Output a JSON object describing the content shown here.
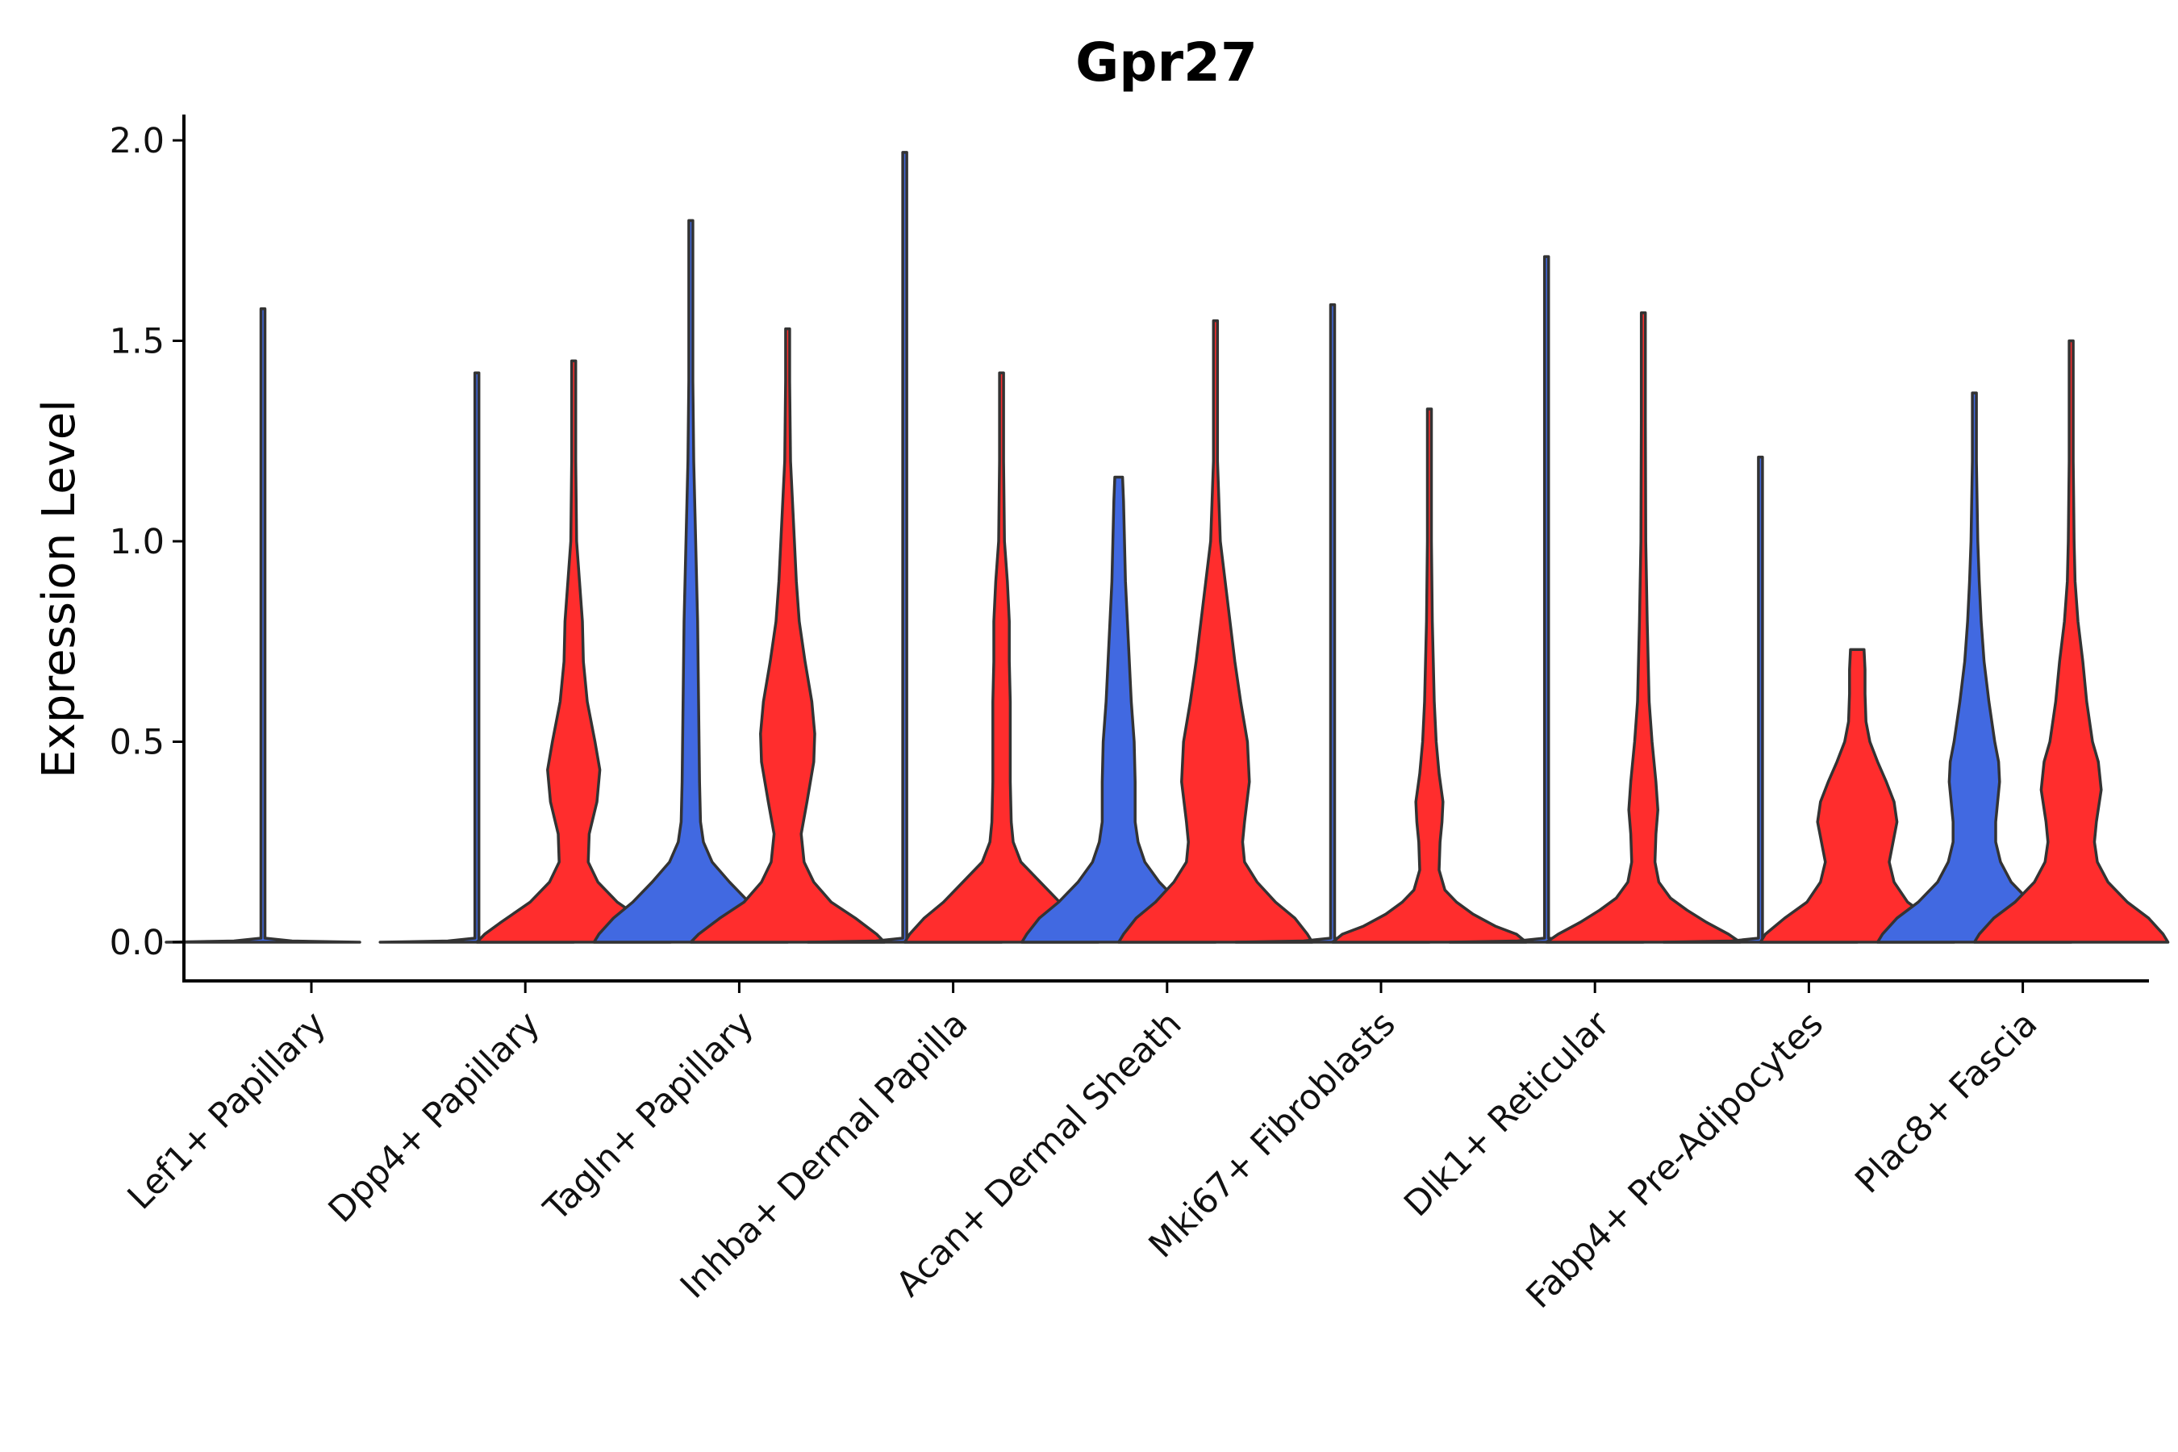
{
  "chart_data": {
    "type": "violin",
    "title": "Gpr27",
    "xlabel": "",
    "ylabel": "Expression Level",
    "ylim": [
      -0.1,
      2.07
    ],
    "yticks": [
      0.0,
      0.5,
      1.0,
      1.5,
      2.0
    ],
    "ytick_labels": [
      "0.0",
      "0.5",
      "1.0",
      "1.5",
      "2.0"
    ],
    "grid": false,
    "legend": "none",
    "colors": {
      "blue": "#4169e1",
      "red": "#ff2d2d",
      "outline": "#333333"
    },
    "categories": [
      "Lef1+ Papillary",
      "Dpp4+ Papillary",
      "Tagln+ Papillary",
      "Inhba+ Dermal Papilla",
      "Acan+ Dermal Sheath",
      "Mki67+ Fibroblasts",
      "Dlk1+ Reticular",
      "Fabp4+ Pre-Adipocytes",
      "Plac8+ Fascia"
    ],
    "violins": [
      {
        "group": "Lef1+ Papillary",
        "side": "left",
        "color": "blue",
        "max": 1.58,
        "profile": [
          [
            0,
            1.0
          ],
          [
            0.003,
            0.3
          ],
          [
            0.01,
            0.01
          ],
          [
            0.06,
            0.006
          ],
          [
            1.58,
            0.006
          ]
        ]
      },
      {
        "group": "Lef1+ Papillary",
        "side": "right",
        "color": "red",
        "max": 0.0,
        "profile": []
      },
      {
        "group": "Dpp4+ Papillary",
        "side": "left",
        "color": "blue",
        "max": 1.42,
        "profile": [
          [
            0,
            1.0
          ],
          [
            0.003,
            0.3
          ],
          [
            0.01,
            0.01
          ],
          [
            0.06,
            0.006
          ],
          [
            1.42,
            0.006
          ]
        ]
      },
      {
        "group": "Dpp4+ Papillary",
        "side": "right",
        "color": "red",
        "max": 1.45,
        "profile": [
          [
            0,
            1.0
          ],
          [
            0.02,
            0.92
          ],
          [
            0.05,
            0.75
          ],
          [
            0.1,
            0.45
          ],
          [
            0.15,
            0.25
          ],
          [
            0.2,
            0.15
          ],
          [
            0.27,
            0.16
          ],
          [
            0.35,
            0.24
          ],
          [
            0.43,
            0.27
          ],
          [
            0.5,
            0.22
          ],
          [
            0.6,
            0.14
          ],
          [
            0.7,
            0.1
          ],
          [
            0.8,
            0.09
          ],
          [
            0.9,
            0.06
          ],
          [
            1.0,
            0.03
          ],
          [
            1.2,
            0.015
          ],
          [
            1.45,
            0.01
          ]
        ]
      },
      {
        "group": "Tagln+ Papillary",
        "side": "left",
        "color": "blue",
        "max": 1.8,
        "profile": [
          [
            0,
            1.0
          ],
          [
            0.02,
            0.95
          ],
          [
            0.06,
            0.8
          ],
          [
            0.1,
            0.6
          ],
          [
            0.15,
            0.4
          ],
          [
            0.2,
            0.22
          ],
          [
            0.25,
            0.13
          ],
          [
            0.3,
            0.1
          ],
          [
            0.4,
            0.09
          ],
          [
            0.6,
            0.08
          ],
          [
            0.8,
            0.07
          ],
          [
            1.0,
            0.05
          ],
          [
            1.2,
            0.03
          ],
          [
            1.4,
            0.015
          ],
          [
            1.8,
            0.01
          ]
        ]
      },
      {
        "group": "Tagln+ Papillary",
        "side": "right",
        "color": "red",
        "max": 1.53,
        "profile": [
          [
            0,
            1.0
          ],
          [
            0.02,
            0.92
          ],
          [
            0.06,
            0.7
          ],
          [
            0.1,
            0.45
          ],
          [
            0.15,
            0.27
          ],
          [
            0.2,
            0.17
          ],
          [
            0.27,
            0.14
          ],
          [
            0.35,
            0.2
          ],
          [
            0.45,
            0.27
          ],
          [
            0.52,
            0.28
          ],
          [
            0.6,
            0.25
          ],
          [
            0.7,
            0.18
          ],
          [
            0.8,
            0.12
          ],
          [
            0.9,
            0.09
          ],
          [
            1.0,
            0.07
          ],
          [
            1.2,
            0.03
          ],
          [
            1.4,
            0.015
          ],
          [
            1.53,
            0.01
          ]
        ]
      },
      {
        "group": "Inhba+ Dermal Papilla",
        "side": "left",
        "color": "blue",
        "max": 1.97,
        "profile": [
          [
            0,
            1.0
          ],
          [
            0.003,
            0.3
          ],
          [
            0.01,
            0.01
          ],
          [
            0.06,
            0.006
          ],
          [
            1.97,
            0.006
          ]
        ]
      },
      {
        "group": "Inhba+ Dermal Papilla",
        "side": "right",
        "color": "red",
        "max": 1.42,
        "profile": [
          [
            0,
            1.0
          ],
          [
            0.02,
            0.95
          ],
          [
            0.06,
            0.8
          ],
          [
            0.1,
            0.6
          ],
          [
            0.15,
            0.4
          ],
          [
            0.2,
            0.2
          ],
          [
            0.25,
            0.12
          ],
          [
            0.3,
            0.1
          ],
          [
            0.4,
            0.09
          ],
          [
            0.5,
            0.09
          ],
          [
            0.6,
            0.09
          ],
          [
            0.7,
            0.08
          ],
          [
            0.8,
            0.08
          ],
          [
            0.9,
            0.06
          ],
          [
            1.0,
            0.03
          ],
          [
            1.2,
            0.015
          ],
          [
            1.42,
            0.01
          ]
        ]
      },
      {
        "group": "Acan+ Dermal Sheath",
        "side": "left",
        "color": "blue",
        "max": 1.16,
        "profile": [
          [
            0,
            1.0
          ],
          [
            0.02,
            0.95
          ],
          [
            0.06,
            0.82
          ],
          [
            0.1,
            0.62
          ],
          [
            0.15,
            0.42
          ],
          [
            0.2,
            0.27
          ],
          [
            0.25,
            0.2
          ],
          [
            0.3,
            0.17
          ],
          [
            0.4,
            0.17
          ],
          [
            0.5,
            0.16
          ],
          [
            0.6,
            0.13
          ],
          [
            0.7,
            0.11
          ],
          [
            0.8,
            0.09
          ],
          [
            0.9,
            0.07
          ],
          [
            1.0,
            0.06
          ],
          [
            1.1,
            0.05
          ],
          [
            1.16,
            0.04
          ]
        ]
      },
      {
        "group": "Acan+ Dermal Sheath",
        "side": "right",
        "color": "red",
        "max": 1.55,
        "profile": [
          [
            0,
            1.0
          ],
          [
            0.02,
            0.95
          ],
          [
            0.06,
            0.82
          ],
          [
            0.1,
            0.62
          ],
          [
            0.15,
            0.43
          ],
          [
            0.2,
            0.3
          ],
          [
            0.25,
            0.28
          ],
          [
            0.3,
            0.3
          ],
          [
            0.4,
            0.35
          ],
          [
            0.5,
            0.33
          ],
          [
            0.6,
            0.26
          ],
          [
            0.7,
            0.2
          ],
          [
            0.8,
            0.15
          ],
          [
            0.9,
            0.1
          ],
          [
            1.0,
            0.05
          ],
          [
            1.2,
            0.02
          ],
          [
            1.4,
            0.012
          ],
          [
            1.55,
            0.01
          ]
        ]
      },
      {
        "group": "Mki67+ Fibroblasts",
        "side": "left",
        "color": "blue",
        "max": 1.59,
        "profile": [
          [
            0,
            1.0
          ],
          [
            0.003,
            0.3
          ],
          [
            0.01,
            0.01
          ],
          [
            0.06,
            0.006
          ],
          [
            1.59,
            0.006
          ]
        ]
      },
      {
        "group": "Mki67+ Fibroblasts",
        "side": "right",
        "color": "red",
        "max": 1.33,
        "profile": [
          [
            0,
            1.0
          ],
          [
            0.02,
            0.9
          ],
          [
            0.04,
            0.68
          ],
          [
            0.07,
            0.45
          ],
          [
            0.1,
            0.28
          ],
          [
            0.13,
            0.16
          ],
          [
            0.18,
            0.1
          ],
          [
            0.25,
            0.11
          ],
          [
            0.3,
            0.13
          ],
          [
            0.35,
            0.14
          ],
          [
            0.42,
            0.1
          ],
          [
            0.5,
            0.07
          ],
          [
            0.6,
            0.05
          ],
          [
            0.8,
            0.03
          ],
          [
            1.0,
            0.02
          ],
          [
            1.33,
            0.01
          ]
        ]
      },
      {
        "group": "Dlk1+ Reticular",
        "side": "left",
        "color": "blue",
        "max": 1.71,
        "profile": [
          [
            0,
            1.0
          ],
          [
            0.003,
            0.3
          ],
          [
            0.01,
            0.01
          ],
          [
            0.06,
            0.006
          ],
          [
            1.71,
            0.006
          ]
        ]
      },
      {
        "group": "Dlk1+ Reticular",
        "side": "right",
        "color": "red",
        "max": 1.57,
        "profile": [
          [
            0,
            1.0
          ],
          [
            0.02,
            0.88
          ],
          [
            0.05,
            0.65
          ],
          [
            0.08,
            0.45
          ],
          [
            0.11,
            0.28
          ],
          [
            0.15,
            0.16
          ],
          [
            0.2,
            0.12
          ],
          [
            0.27,
            0.13
          ],
          [
            0.33,
            0.15
          ],
          [
            0.4,
            0.13
          ],
          [
            0.5,
            0.09
          ],
          [
            0.6,
            0.06
          ],
          [
            0.8,
            0.04
          ],
          [
            1.0,
            0.025
          ],
          [
            1.3,
            0.015
          ],
          [
            1.57,
            0.01
          ]
        ]
      },
      {
        "group": "Fabp4+ Pre-Adipocytes",
        "side": "left",
        "color": "blue",
        "max": 1.21,
        "profile": [
          [
            0,
            1.0
          ],
          [
            0.003,
            0.3
          ],
          [
            0.01,
            0.01
          ],
          [
            0.06,
            0.006
          ],
          [
            1.21,
            0.006
          ]
        ]
      },
      {
        "group": "Fabp4+ Pre-Adipocytes",
        "side": "right",
        "color": "red",
        "max": 0.73,
        "profile": [
          [
            0,
            1.0
          ],
          [
            0.02,
            0.95
          ],
          [
            0.06,
            0.75
          ],
          [
            0.1,
            0.52
          ],
          [
            0.15,
            0.38
          ],
          [
            0.2,
            0.33
          ],
          [
            0.25,
            0.37
          ],
          [
            0.3,
            0.41
          ],
          [
            0.35,
            0.38
          ],
          [
            0.4,
            0.3
          ],
          [
            0.45,
            0.21
          ],
          [
            0.5,
            0.13
          ],
          [
            0.55,
            0.09
          ],
          [
            0.62,
            0.08
          ],
          [
            0.68,
            0.08
          ],
          [
            0.73,
            0.07
          ]
        ]
      },
      {
        "group": "Plac8+ Fascia",
        "side": "left",
        "color": "blue",
        "max": 1.37,
        "profile": [
          [
            0,
            1.0
          ],
          [
            0.02,
            0.95
          ],
          [
            0.06,
            0.8
          ],
          [
            0.1,
            0.58
          ],
          [
            0.15,
            0.38
          ],
          [
            0.2,
            0.27
          ],
          [
            0.25,
            0.22
          ],
          [
            0.3,
            0.22
          ],
          [
            0.4,
            0.26
          ],
          [
            0.45,
            0.25
          ],
          [
            0.5,
            0.21
          ],
          [
            0.6,
            0.15
          ],
          [
            0.7,
            0.1
          ],
          [
            0.8,
            0.07
          ],
          [
            0.9,
            0.05
          ],
          [
            1.0,
            0.035
          ],
          [
            1.2,
            0.02
          ],
          [
            1.37,
            0.012
          ]
        ]
      },
      {
        "group": "Plac8+ Fascia",
        "side": "right",
        "color": "red",
        "max": 1.5,
        "profile": [
          [
            0,
            1.0
          ],
          [
            0.02,
            0.95
          ],
          [
            0.06,
            0.8
          ],
          [
            0.1,
            0.58
          ],
          [
            0.15,
            0.38
          ],
          [
            0.2,
            0.27
          ],
          [
            0.25,
            0.24
          ],
          [
            0.3,
            0.26
          ],
          [
            0.38,
            0.31
          ],
          [
            0.45,
            0.28
          ],
          [
            0.5,
            0.22
          ],
          [
            0.6,
            0.16
          ],
          [
            0.7,
            0.12
          ],
          [
            0.8,
            0.07
          ],
          [
            0.9,
            0.04
          ],
          [
            1.0,
            0.03
          ],
          [
            1.2,
            0.015
          ],
          [
            1.5,
            0.01
          ]
        ]
      }
    ]
  }
}
